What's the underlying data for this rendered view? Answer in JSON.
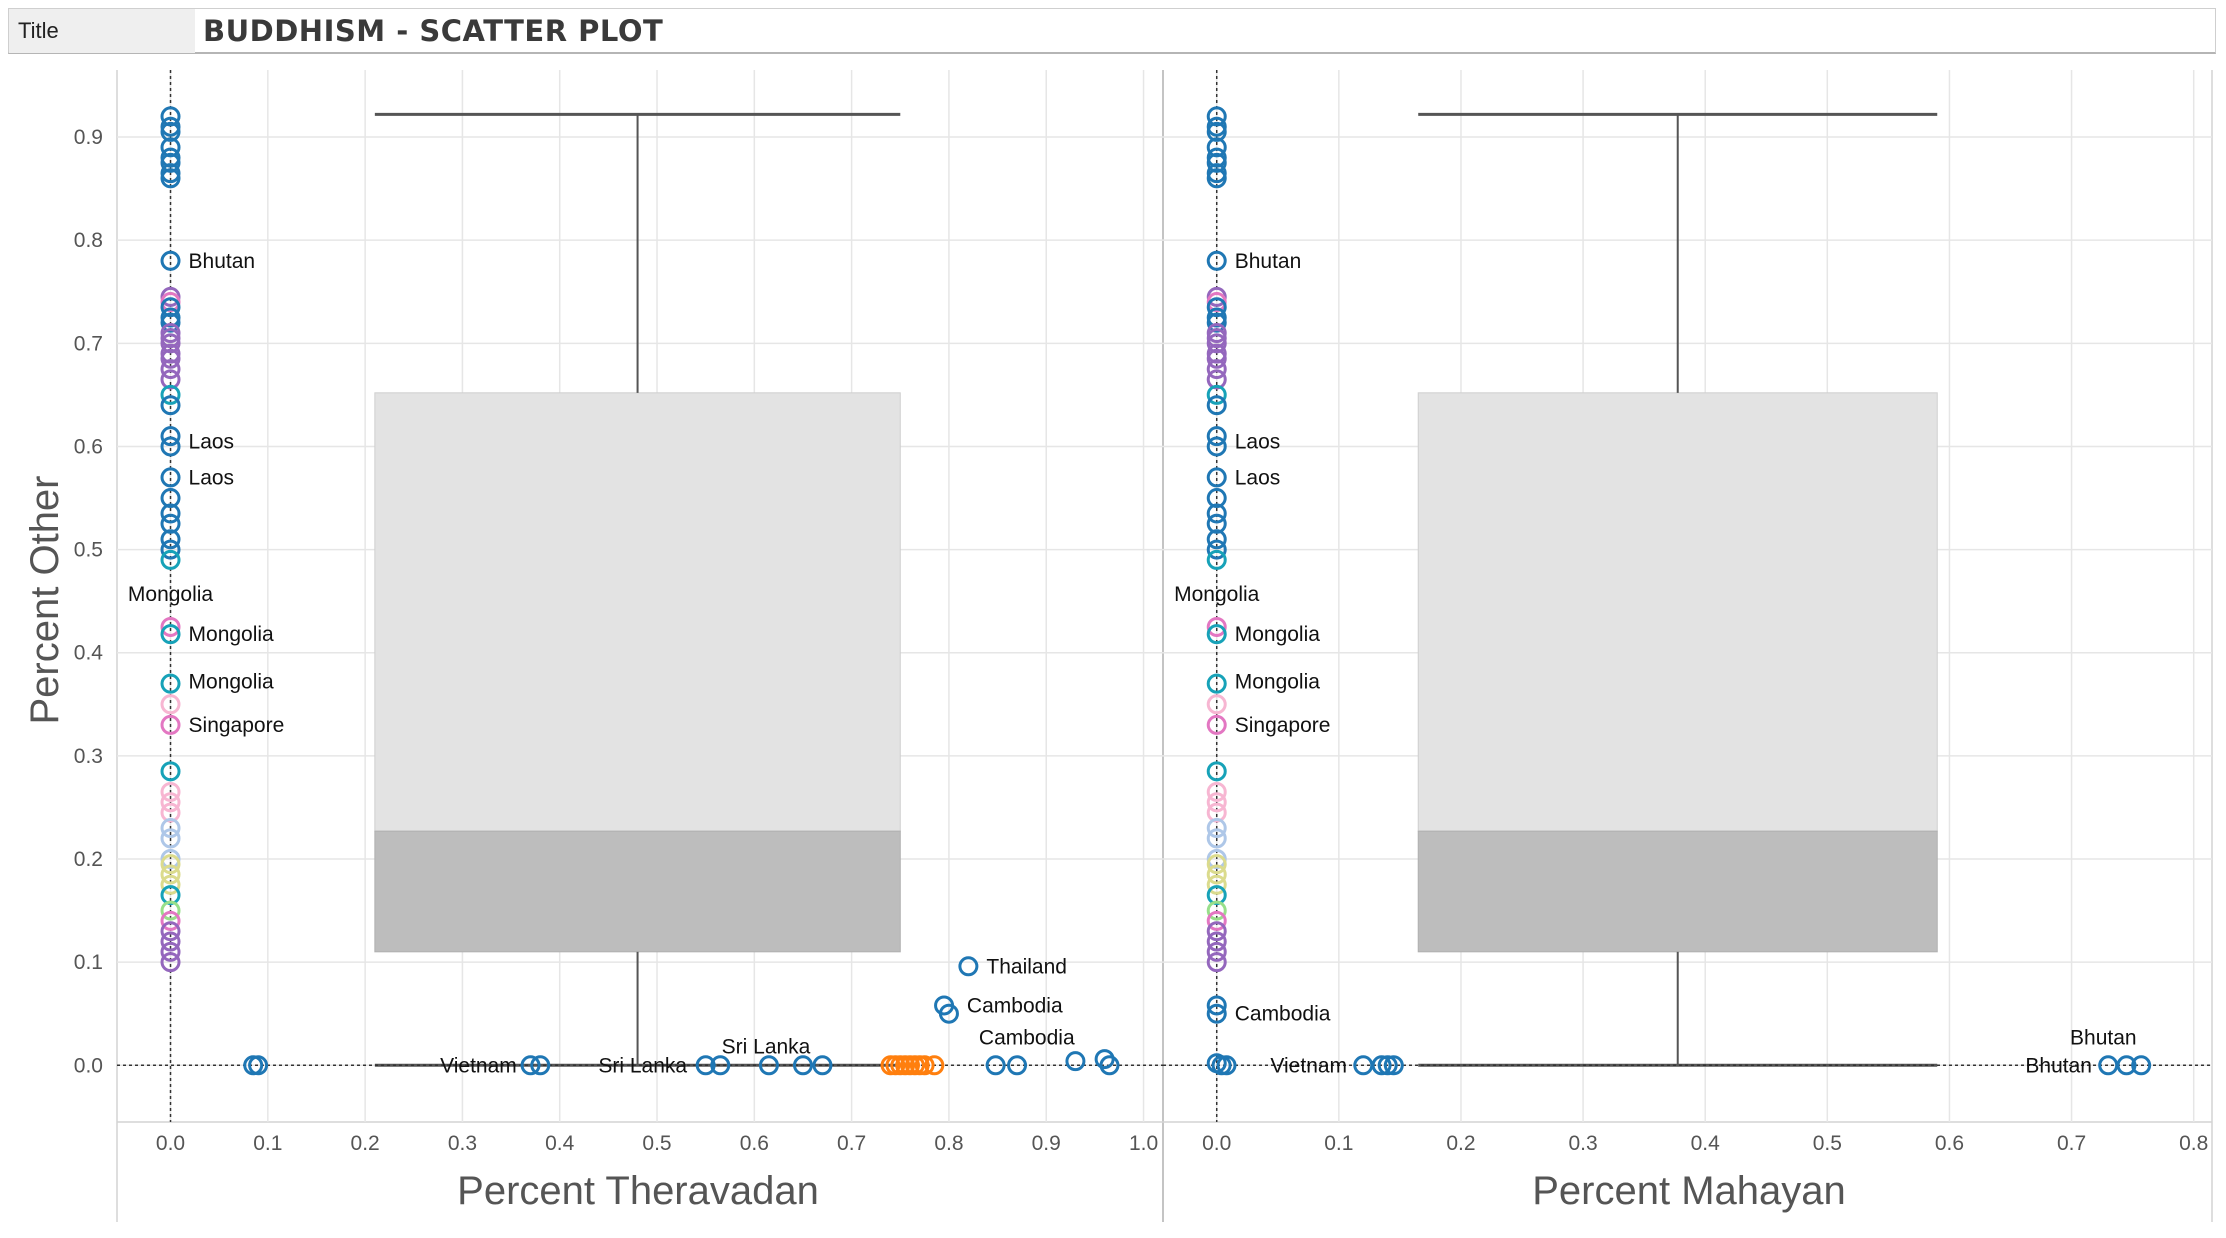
{
  "header": {
    "title_label": "Title",
    "title": "BUDDHISM - SCATTER PLOT"
  },
  "colors": {
    "blue": "#1f77b4",
    "teal": "#17a2b8",
    "purple": "#9467bd",
    "pink": "#e377c2",
    "light_pink": "#f7b6d2",
    "light_blue": "#aec7e8",
    "olive": "#dbdb8d",
    "light_green": "#98df8a",
    "orange": "#ff7f0e",
    "box_light": "#e3e3e3",
    "box_dark": "#bdbdbd",
    "whisker": "#555555",
    "grid": "#e6e6e6"
  },
  "chart_data": [
    {
      "type": "scatter",
      "name": "theravadan-panel",
      "xlabel": "Percent Theravadan",
      "ylabel": "Percent Other",
      "xlim": [
        -0.055,
        1.02
      ],
      "ylim": [
        -0.055,
        0.965
      ],
      "xticks": [
        "0.0",
        "0.1",
        "0.2",
        "0.3",
        "0.4",
        "0.5",
        "0.6",
        "0.7",
        "0.8",
        "0.9",
        "1.0"
      ],
      "yticks": [
        "0.0",
        "0.1",
        "0.2",
        "0.3",
        "0.4",
        "0.5",
        "0.6",
        "0.7",
        "0.8",
        "0.9"
      ],
      "box": {
        "x_min": 0.21,
        "x_max": 0.75,
        "y_min": 0.0,
        "q1": 0.11,
        "median": 0.227,
        "q3": 0.652,
        "y_max": 0.922
      },
      "reference_lines": {
        "x": 0.0,
        "y": 0.0
      },
      "points": [
        {
          "x": 0,
          "y": 0.92,
          "c": "blue"
        },
        {
          "x": 0,
          "y": 0.91,
          "c": "blue"
        },
        {
          "x": 0,
          "y": 0.905,
          "c": "blue"
        },
        {
          "x": 0,
          "y": 0.89,
          "c": "blue"
        },
        {
          "x": 0,
          "y": 0.88,
          "c": "blue"
        },
        {
          "x": 0,
          "y": 0.875,
          "c": "blue"
        },
        {
          "x": 0,
          "y": 0.865,
          "c": "blue"
        },
        {
          "x": 0,
          "y": 0.86,
          "c": "blue"
        },
        {
          "x": 0,
          "y": 0.78,
          "c": "blue"
        },
        {
          "x": 0,
          "y": 0.745,
          "c": "purple"
        },
        {
          "x": 0,
          "y": 0.74,
          "c": "pink"
        },
        {
          "x": 0,
          "y": 0.735,
          "c": "blue"
        },
        {
          "x": 0,
          "y": 0.725,
          "c": "blue"
        },
        {
          "x": 0,
          "y": 0.72,
          "c": "blue"
        },
        {
          "x": 0,
          "y": 0.71,
          "c": "purple"
        },
        {
          "x": 0,
          "y": 0.705,
          "c": "purple"
        },
        {
          "x": 0,
          "y": 0.7,
          "c": "purple"
        },
        {
          "x": 0,
          "y": 0.69,
          "c": "purple"
        },
        {
          "x": 0,
          "y": 0.685,
          "c": "purple"
        },
        {
          "x": 0,
          "y": 0.675,
          "c": "purple"
        },
        {
          "x": 0,
          "y": 0.665,
          "c": "purple"
        },
        {
          "x": 0,
          "y": 0.65,
          "c": "teal"
        },
        {
          "x": 0,
          "y": 0.64,
          "c": "blue"
        },
        {
          "x": 0,
          "y": 0.61,
          "c": "blue"
        },
        {
          "x": 0,
          "y": 0.6,
          "c": "blue"
        },
        {
          "x": 0,
          "y": 0.57,
          "c": "blue"
        },
        {
          "x": 0,
          "y": 0.55,
          "c": "blue"
        },
        {
          "x": 0,
          "y": 0.535,
          "c": "blue"
        },
        {
          "x": 0,
          "y": 0.525,
          "c": "blue"
        },
        {
          "x": 0,
          "y": 0.51,
          "c": "blue"
        },
        {
          "x": 0,
          "y": 0.5,
          "c": "blue"
        },
        {
          "x": 0,
          "y": 0.49,
          "c": "teal"
        },
        {
          "x": 0,
          "y": 0.425,
          "c": "pink"
        },
        {
          "x": 0,
          "y": 0.418,
          "c": "teal"
        },
        {
          "x": 0,
          "y": 0.37,
          "c": "teal"
        },
        {
          "x": 0,
          "y": 0.35,
          "c": "light_pink"
        },
        {
          "x": 0,
          "y": 0.33,
          "c": "pink"
        },
        {
          "x": 0,
          "y": 0.285,
          "c": "teal"
        },
        {
          "x": 0,
          "y": 0.265,
          "c": "light_pink"
        },
        {
          "x": 0,
          "y": 0.255,
          "c": "light_pink"
        },
        {
          "x": 0,
          "y": 0.245,
          "c": "light_pink"
        },
        {
          "x": 0,
          "y": 0.23,
          "c": "light_blue"
        },
        {
          "x": 0,
          "y": 0.22,
          "c": "light_blue"
        },
        {
          "x": 0,
          "y": 0.2,
          "c": "light_blue"
        },
        {
          "x": 0,
          "y": 0.195,
          "c": "olive"
        },
        {
          "x": 0,
          "y": 0.185,
          "c": "olive"
        },
        {
          "x": 0,
          "y": 0.175,
          "c": "olive"
        },
        {
          "x": 0,
          "y": 0.165,
          "c": "teal"
        },
        {
          "x": 0,
          "y": 0.15,
          "c": "light_green"
        },
        {
          "x": 0,
          "y": 0.14,
          "c": "pink"
        },
        {
          "x": 0,
          "y": 0.13,
          "c": "purple"
        },
        {
          "x": 0,
          "y": 0.12,
          "c": "purple"
        },
        {
          "x": 0,
          "y": 0.11,
          "c": "purple"
        },
        {
          "x": 0,
          "y": 0.1,
          "c": "purple"
        },
        {
          "x": 0.085,
          "y": 0,
          "c": "blue"
        },
        {
          "x": 0.09,
          "y": 0,
          "c": "blue"
        },
        {
          "x": 0.37,
          "y": 0,
          "c": "blue"
        },
        {
          "x": 0.38,
          "y": 0,
          "c": "blue"
        },
        {
          "x": 0.55,
          "y": 0,
          "c": "blue"
        },
        {
          "x": 0.565,
          "y": 0,
          "c": "blue"
        },
        {
          "x": 0.615,
          "y": 0,
          "c": "blue"
        },
        {
          "x": 0.65,
          "y": 0,
          "c": "blue"
        },
        {
          "x": 0.67,
          "y": 0,
          "c": "blue"
        },
        {
          "x": 0.74,
          "y": 0,
          "c": "orange"
        },
        {
          "x": 0.745,
          "y": 0,
          "c": "orange"
        },
        {
          "x": 0.75,
          "y": 0,
          "c": "orange"
        },
        {
          "x": 0.755,
          "y": 0,
          "c": "orange"
        },
        {
          "x": 0.76,
          "y": 0,
          "c": "orange"
        },
        {
          "x": 0.765,
          "y": 0,
          "c": "orange"
        },
        {
          "x": 0.77,
          "y": 0,
          "c": "orange"
        },
        {
          "x": 0.775,
          "y": 0,
          "c": "orange"
        },
        {
          "x": 0.785,
          "y": 0,
          "c": "orange"
        },
        {
          "x": 0.82,
          "y": 0.096,
          "c": "blue"
        },
        {
          "x": 0.795,
          "y": 0.058,
          "c": "blue"
        },
        {
          "x": 0.8,
          "y": 0.05,
          "c": "blue"
        },
        {
          "x": 0.848,
          "y": 0,
          "c": "blue"
        },
        {
          "x": 0.87,
          "y": 0,
          "c": "blue"
        },
        {
          "x": 0.93,
          "y": 0.004,
          "c": "blue"
        },
        {
          "x": 0.96,
          "y": 0.006,
          "c": "blue"
        },
        {
          "x": 0.965,
          "y": 0,
          "c": "blue"
        }
      ],
      "labels": [
        {
          "text": "Bhutan",
          "x": 0,
          "y": 0.78,
          "anchor": "start"
        },
        {
          "text": "Laos",
          "x": 0,
          "y": 0.605,
          "anchor": "start"
        },
        {
          "text": "Laos",
          "x": 0,
          "y": 0.57,
          "anchor": "start"
        },
        {
          "text": "Mongolia",
          "x": 0,
          "y": 0.457,
          "anchor": "middle"
        },
        {
          "text": "Mongolia",
          "x": 0,
          "y": 0.418,
          "anchor": "start"
        },
        {
          "text": "Mongolia",
          "x": 0,
          "y": 0.372,
          "anchor": "start"
        },
        {
          "text": "Singapore",
          "x": 0,
          "y": 0.33,
          "anchor": "start"
        },
        {
          "text": "Vietnam",
          "x": 0.36,
          "y": 0,
          "anchor": "end"
        },
        {
          "text": "Sri Lanka",
          "x": 0.535,
          "y": 0,
          "anchor": "end"
        },
        {
          "text": "Sri Lanka",
          "x": 0.612,
          "y": 0.018,
          "anchor": "middle"
        },
        {
          "text": "Thailand",
          "x": 0.82,
          "y": 0.096,
          "anchor": "start"
        },
        {
          "text": "Cambodia",
          "x": 0.8,
          "y": 0.058,
          "anchor": "start"
        },
        {
          "text": "Cambodia",
          "x": 0.88,
          "y": 0.027,
          "anchor": "middle"
        }
      ]
    },
    {
      "type": "scatter",
      "name": "mahayan-panel",
      "xlabel": "Percent Mahayan",
      "ylabel": "",
      "xlim": [
        -0.044,
        0.815
      ],
      "ylim": [
        -0.055,
        0.965
      ],
      "xticks": [
        "0.0",
        "0.1",
        "0.2",
        "0.3",
        "0.4",
        "0.5",
        "0.6",
        "0.7",
        "0.8"
      ],
      "yticks": [],
      "box": {
        "x_min": 0.165,
        "x_max": 0.59,
        "y_min": 0.0,
        "q1": 0.11,
        "median": 0.227,
        "q3": 0.652,
        "y_max": 0.922
      },
      "reference_lines": {
        "x": 0.0,
        "y": 0.0
      },
      "points": [
        {
          "x": 0,
          "y": 0.92,
          "c": "blue"
        },
        {
          "x": 0,
          "y": 0.91,
          "c": "blue"
        },
        {
          "x": 0,
          "y": 0.905,
          "c": "blue"
        },
        {
          "x": 0,
          "y": 0.89,
          "c": "blue"
        },
        {
          "x": 0,
          "y": 0.88,
          "c": "blue"
        },
        {
          "x": 0,
          "y": 0.875,
          "c": "blue"
        },
        {
          "x": 0,
          "y": 0.865,
          "c": "blue"
        },
        {
          "x": 0,
          "y": 0.86,
          "c": "blue"
        },
        {
          "x": 0,
          "y": 0.78,
          "c": "blue"
        },
        {
          "x": 0,
          "y": 0.745,
          "c": "purple"
        },
        {
          "x": 0,
          "y": 0.74,
          "c": "pink"
        },
        {
          "x": 0,
          "y": 0.735,
          "c": "blue"
        },
        {
          "x": 0,
          "y": 0.725,
          "c": "blue"
        },
        {
          "x": 0,
          "y": 0.72,
          "c": "blue"
        },
        {
          "x": 0,
          "y": 0.71,
          "c": "purple"
        },
        {
          "x": 0,
          "y": 0.705,
          "c": "purple"
        },
        {
          "x": 0,
          "y": 0.7,
          "c": "purple"
        },
        {
          "x": 0,
          "y": 0.69,
          "c": "purple"
        },
        {
          "x": 0,
          "y": 0.685,
          "c": "purple"
        },
        {
          "x": 0,
          "y": 0.675,
          "c": "purple"
        },
        {
          "x": 0,
          "y": 0.665,
          "c": "purple"
        },
        {
          "x": 0,
          "y": 0.65,
          "c": "teal"
        },
        {
          "x": 0,
          "y": 0.64,
          "c": "blue"
        },
        {
          "x": 0,
          "y": 0.61,
          "c": "blue"
        },
        {
          "x": 0,
          "y": 0.6,
          "c": "blue"
        },
        {
          "x": 0,
          "y": 0.57,
          "c": "blue"
        },
        {
          "x": 0,
          "y": 0.55,
          "c": "blue"
        },
        {
          "x": 0,
          "y": 0.535,
          "c": "blue"
        },
        {
          "x": 0,
          "y": 0.525,
          "c": "blue"
        },
        {
          "x": 0,
          "y": 0.51,
          "c": "blue"
        },
        {
          "x": 0,
          "y": 0.5,
          "c": "blue"
        },
        {
          "x": 0,
          "y": 0.49,
          "c": "teal"
        },
        {
          "x": 0,
          "y": 0.425,
          "c": "pink"
        },
        {
          "x": 0,
          "y": 0.418,
          "c": "teal"
        },
        {
          "x": 0,
          "y": 0.37,
          "c": "teal"
        },
        {
          "x": 0,
          "y": 0.35,
          "c": "light_pink"
        },
        {
          "x": 0,
          "y": 0.33,
          "c": "pink"
        },
        {
          "x": 0,
          "y": 0.285,
          "c": "teal"
        },
        {
          "x": 0,
          "y": 0.265,
          "c": "light_pink"
        },
        {
          "x": 0,
          "y": 0.255,
          "c": "light_pink"
        },
        {
          "x": 0,
          "y": 0.245,
          "c": "light_pink"
        },
        {
          "x": 0,
          "y": 0.23,
          "c": "light_blue"
        },
        {
          "x": 0,
          "y": 0.22,
          "c": "light_blue"
        },
        {
          "x": 0,
          "y": 0.2,
          "c": "light_blue"
        },
        {
          "x": 0,
          "y": 0.195,
          "c": "olive"
        },
        {
          "x": 0,
          "y": 0.185,
          "c": "olive"
        },
        {
          "x": 0,
          "y": 0.175,
          "c": "olive"
        },
        {
          "x": 0,
          "y": 0.165,
          "c": "teal"
        },
        {
          "x": 0,
          "y": 0.15,
          "c": "light_green"
        },
        {
          "x": 0,
          "y": 0.14,
          "c": "pink"
        },
        {
          "x": 0,
          "y": 0.13,
          "c": "purple"
        },
        {
          "x": 0,
          "y": 0.12,
          "c": "purple"
        },
        {
          "x": 0,
          "y": 0.11,
          "c": "purple"
        },
        {
          "x": 0,
          "y": 0.1,
          "c": "purple"
        },
        {
          "x": 0,
          "y": 0.058,
          "c": "blue"
        },
        {
          "x": 0,
          "y": 0.05,
          "c": "blue"
        },
        {
          "x": 0,
          "y": 0.002,
          "c": "blue"
        },
        {
          "x": 0.004,
          "y": 0,
          "c": "blue"
        },
        {
          "x": 0.008,
          "y": 0,
          "c": "blue"
        },
        {
          "x": 0.12,
          "y": 0,
          "c": "blue"
        },
        {
          "x": 0.135,
          "y": 0,
          "c": "blue"
        },
        {
          "x": 0.14,
          "y": 0,
          "c": "blue"
        },
        {
          "x": 0.145,
          "y": 0,
          "c": "blue"
        },
        {
          "x": 0.73,
          "y": 0,
          "c": "blue"
        },
        {
          "x": 0.745,
          "y": 0,
          "c": "blue"
        },
        {
          "x": 0.757,
          "y": 0,
          "c": "blue"
        }
      ],
      "labels": [
        {
          "text": "Bhutan",
          "x": 0,
          "y": 0.78,
          "anchor": "start"
        },
        {
          "text": "Laos",
          "x": 0,
          "y": 0.605,
          "anchor": "start"
        },
        {
          "text": "Laos",
          "x": 0,
          "y": 0.57,
          "anchor": "start"
        },
        {
          "text": "Mongolia",
          "x": 0,
          "y": 0.457,
          "anchor": "middle"
        },
        {
          "text": "Mongolia",
          "x": 0,
          "y": 0.418,
          "anchor": "start"
        },
        {
          "text": "Mongolia",
          "x": 0,
          "y": 0.372,
          "anchor": "start"
        },
        {
          "text": "Singapore",
          "x": 0,
          "y": 0.33,
          "anchor": "start"
        },
        {
          "text": "Cambodia",
          "x": 0,
          "y": 0.05,
          "anchor": "start"
        },
        {
          "text": "Vietnam",
          "x": 0.11,
          "y": 0,
          "anchor": "end"
        },
        {
          "text": "Bhutan",
          "x": 0.72,
          "y": 0,
          "anchor": "end"
        },
        {
          "text": "Bhutan",
          "x": 0.726,
          "y": 0.027,
          "anchor": "middle"
        }
      ]
    }
  ]
}
